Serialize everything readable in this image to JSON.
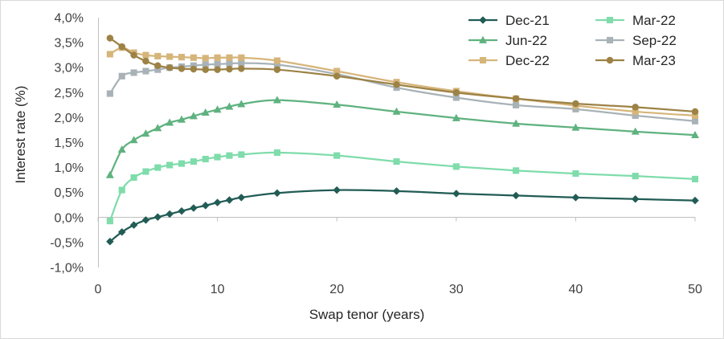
{
  "chart_data": {
    "type": "line",
    "title": "",
    "xlabel": "Swap tenor (years)",
    "ylabel": "Interest rate (%)",
    "xlim": [
      0,
      50
    ],
    "ylim": [
      -1.0,
      4.0
    ],
    "xticks": [
      0,
      10,
      20,
      30,
      40,
      50
    ],
    "xtick_labels": [
      "0",
      "10",
      "20",
      "30",
      "40",
      "50"
    ],
    "yticks": [
      -1.0,
      -0.5,
      0.0,
      0.5,
      1.0,
      1.5,
      2.0,
      2.5,
      3.0,
      3.5,
      4.0
    ],
    "ytick_labels": [
      "-1,0%",
      "-0,5%",
      "0,0%",
      "0,5%",
      "1,0%",
      "1,5%",
      "2,0%",
      "2,5%",
      "3,0%",
      "3,5%",
      "4,0%"
    ],
    "grid": false,
    "legend_position": "top-right",
    "x": [
      1,
      2,
      3,
      4,
      5,
      6,
      7,
      8,
      9,
      10,
      11,
      12,
      15,
      20,
      25,
      30,
      35,
      40,
      45,
      50
    ],
    "series": [
      {
        "name": "Dec-21",
        "color": "#215c55",
        "marker": "diamond",
        "values": [
          -0.48,
          -0.29,
          -0.15,
          -0.05,
          0.01,
          0.07,
          0.13,
          0.19,
          0.24,
          0.3,
          0.35,
          0.4,
          0.49,
          0.55,
          0.53,
          0.48,
          0.44,
          0.4,
          0.37,
          0.34
        ]
      },
      {
        "name": "Mar-22",
        "color": "#7fdcab",
        "marker": "square",
        "values": [
          -0.07,
          0.55,
          0.8,
          0.92,
          1.0,
          1.05,
          1.08,
          1.12,
          1.17,
          1.21,
          1.24,
          1.26,
          1.3,
          1.24,
          1.12,
          1.02,
          0.94,
          0.88,
          0.83,
          0.77
        ]
      },
      {
        "name": "Jun-22",
        "color": "#5fb27f",
        "marker": "triangle",
        "values": [
          0.85,
          1.36,
          1.55,
          1.68,
          1.79,
          1.9,
          1.96,
          2.03,
          2.1,
          2.16,
          2.22,
          2.27,
          2.35,
          2.26,
          2.12,
          1.99,
          1.88,
          1.8,
          1.72,
          1.65
        ]
      },
      {
        "name": "Sep-22",
        "color": "#a8b2b7",
        "marker": "square",
        "values": [
          2.48,
          2.83,
          2.9,
          2.93,
          2.96,
          3.0,
          3.02,
          3.04,
          3.06,
          3.07,
          3.08,
          3.09,
          3.06,
          2.87,
          2.6,
          2.4,
          2.25,
          2.17,
          2.04,
          1.93
        ]
      },
      {
        "name": "Dec-22",
        "color": "#d6b57a",
        "marker": "square",
        "values": [
          3.27,
          3.4,
          3.3,
          3.25,
          3.23,
          3.22,
          3.21,
          3.2,
          3.19,
          3.2,
          3.2,
          3.2,
          3.14,
          2.93,
          2.71,
          2.53,
          2.38,
          2.24,
          2.12,
          2.04
        ]
      },
      {
        "name": "Mar-23",
        "color": "#9c8245",
        "marker": "circle",
        "values": [
          3.59,
          3.42,
          3.25,
          3.13,
          3.04,
          3.0,
          2.98,
          2.97,
          2.96,
          2.96,
          2.97,
          2.98,
          2.96,
          2.83,
          2.66,
          2.5,
          2.38,
          2.28,
          2.21,
          2.12
        ]
      }
    ]
  }
}
